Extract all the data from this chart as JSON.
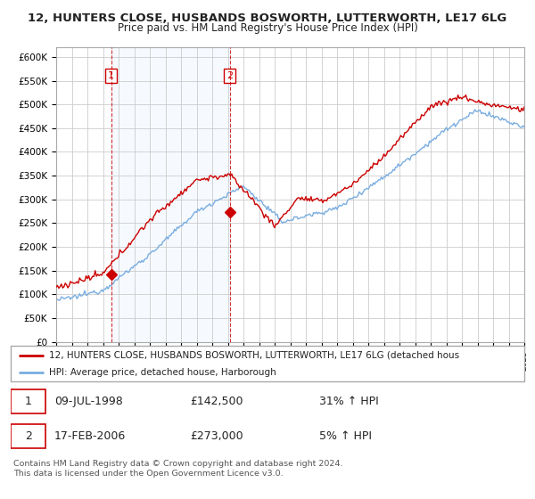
{
  "title": "12, HUNTERS CLOSE, HUSBANDS BOSWORTH, LUTTERWORTH, LE17 6LG",
  "subtitle": "Price paid vs. HM Land Registry's House Price Index (HPI)",
  "ylim": [
    0,
    620000
  ],
  "yticks": [
    0,
    50000,
    100000,
    150000,
    200000,
    250000,
    300000,
    350000,
    400000,
    450000,
    500000,
    550000,
    600000
  ],
  "ytick_labels": [
    "£0",
    "£50K",
    "£100K",
    "£150K",
    "£200K",
    "£250K",
    "£300K",
    "£350K",
    "£400K",
    "£450K",
    "£500K",
    "£550K",
    "£600K"
  ],
  "sale1_date": 1998.52,
  "sale1_price": 142500,
  "sale1_label": "1",
  "sale2_date": 2006.12,
  "sale2_price": 273000,
  "sale2_label": "2",
  "xlim_start": 1995.0,
  "xlim_end": 2025.0,
  "legend_line1": "12, HUNTERS CLOSE, HUSBANDS BOSWORTH, LUTTERWORTH, LE17 6LG (detached hous",
  "legend_line2": "HPI: Average price, detached house, Harborough",
  "table_row1": [
    "1",
    "09-JUL-1998",
    "£142,500",
    "31% ↑ HPI"
  ],
  "table_row2": [
    "2",
    "17-FEB-2006",
    "£273,000",
    "5% ↑ HPI"
  ],
  "footer": "Contains HM Land Registry data © Crown copyright and database right 2024.\nThis data is licensed under the Open Government Licence v3.0.",
  "red_color": "#cc0000",
  "blue_color": "#7aade0",
  "shade_color": "#ddeeff",
  "grid_color": "#cccccc",
  "background_color": "#ffffff"
}
